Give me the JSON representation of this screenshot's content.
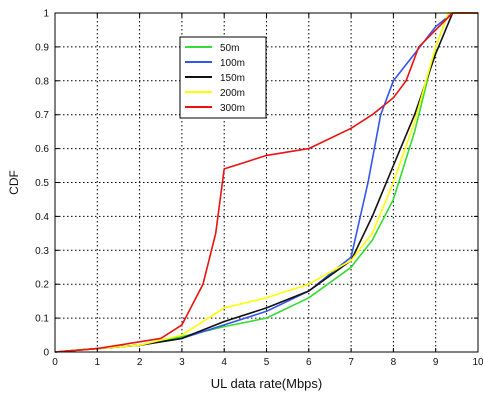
{
  "chart_data": {
    "type": "line",
    "title": "",
    "xlabel": "UL data rate(Mbps)",
    "ylabel": "CDF",
    "xlim": [
      0,
      10
    ],
    "ylim": [
      0,
      1
    ],
    "xticks": [
      "0",
      "1",
      "2",
      "3",
      "4",
      "5",
      "6",
      "7",
      "8",
      "9",
      "10"
    ],
    "yticks": [
      "0",
      "0.1",
      "0.2",
      "0.3",
      "0.4",
      "0.5",
      "0.6",
      "0.7",
      "0.8",
      "0.9",
      "1"
    ],
    "grid": true,
    "grid_style": "dotted",
    "legend_position": "top-center",
    "series": [
      {
        "name": "50m",
        "color": "#33dd33",
        "points": [
          [
            0,
            0
          ],
          [
            1,
            0.01
          ],
          [
            2,
            0.02
          ],
          [
            3,
            0.045
          ],
          [
            4,
            0.075
          ],
          [
            5,
            0.1
          ],
          [
            6,
            0.16
          ],
          [
            7,
            0.25
          ],
          [
            7.5,
            0.33
          ],
          [
            8,
            0.45
          ],
          [
            8.5,
            0.65
          ],
          [
            9,
            0.9
          ],
          [
            9.3,
            1
          ],
          [
            10,
            1
          ]
        ]
      },
      {
        "name": "100m",
        "color": "#3355ee",
        "points": [
          [
            0,
            0
          ],
          [
            1,
            0.01
          ],
          [
            2,
            0.02
          ],
          [
            3,
            0.04
          ],
          [
            4,
            0.08
          ],
          [
            5,
            0.12
          ],
          [
            6,
            0.18
          ],
          [
            7,
            0.28
          ],
          [
            7.4,
            0.5
          ],
          [
            7.7,
            0.7
          ],
          [
            8,
            0.8
          ],
          [
            8.5,
            0.88
          ],
          [
            9,
            0.96
          ],
          [
            9.4,
            1
          ],
          [
            10,
            1
          ]
        ]
      },
      {
        "name": "150m",
        "color": "#111111",
        "points": [
          [
            0,
            0
          ],
          [
            1,
            0.01
          ],
          [
            2,
            0.02
          ],
          [
            3,
            0.04
          ],
          [
            4,
            0.09
          ],
          [
            5,
            0.13
          ],
          [
            6,
            0.18
          ],
          [
            7,
            0.27
          ],
          [
            7.5,
            0.4
          ],
          [
            8,
            0.55
          ],
          [
            8.5,
            0.7
          ],
          [
            9,
            0.88
          ],
          [
            9.4,
            1
          ],
          [
            10,
            1
          ]
        ]
      },
      {
        "name": "200m",
        "color": "#ffff00",
        "points": [
          [
            0,
            0
          ],
          [
            1,
            0.01
          ],
          [
            2,
            0.02
          ],
          [
            3,
            0.05
          ],
          [
            4,
            0.13
          ],
          [
            5,
            0.16
          ],
          [
            6,
            0.2
          ],
          [
            7,
            0.27
          ],
          [
            7.5,
            0.35
          ],
          [
            8,
            0.5
          ],
          [
            8.5,
            0.68
          ],
          [
            9,
            0.9
          ],
          [
            9.3,
            1
          ],
          [
            10,
            1
          ]
        ]
      },
      {
        "name": "300m",
        "color": "#ee1111",
        "points": [
          [
            0,
            0
          ],
          [
            1,
            0.01
          ],
          [
            2,
            0.03
          ],
          [
            2.5,
            0.04
          ],
          [
            3,
            0.08
          ],
          [
            3.5,
            0.2
          ],
          [
            3.8,
            0.35
          ],
          [
            4,
            0.54
          ],
          [
            4.5,
            0.56
          ],
          [
            5,
            0.58
          ],
          [
            6,
            0.6
          ],
          [
            7,
            0.66
          ],
          [
            7.5,
            0.7
          ],
          [
            8,
            0.75
          ],
          [
            8.3,
            0.8
          ],
          [
            8.6,
            0.9
          ],
          [
            9,
            0.95
          ],
          [
            9.4,
            1
          ],
          [
            10,
            1
          ]
        ]
      }
    ]
  }
}
